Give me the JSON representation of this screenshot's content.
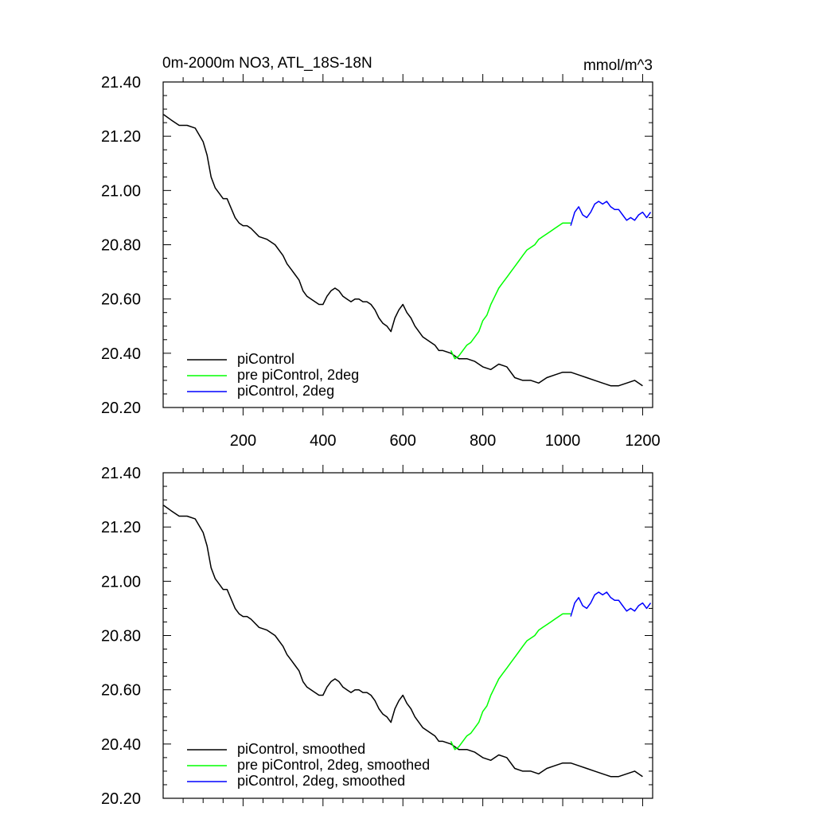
{
  "chart_data": [
    {
      "type": "line",
      "title": "0m-2000m NO3, ATL_18S-18N",
      "units": "mmol/m^3",
      "xlim": [
        0,
        1225
      ],
      "ylim": [
        20.2,
        21.4
      ],
      "xticks": [
        200,
        400,
        600,
        800,
        1000,
        1200
      ],
      "xtick_labels": [
        "200",
        "400",
        "600",
        "800",
        "1000",
        "1200"
      ],
      "yticks": [
        20.2,
        20.4,
        20.6,
        20.8,
        21.0,
        21.2,
        21.4
      ],
      "ytick_labels": [
        "20.20",
        "20.40",
        "20.60",
        "20.80",
        "21.00",
        "21.20",
        "21.40"
      ],
      "legend_position": "bottom-left",
      "series": [
        {
          "name": "piControl",
          "color": "#000000",
          "x": [
            1,
            20,
            40,
            60,
            80,
            100,
            110,
            120,
            130,
            140,
            150,
            160,
            180,
            190,
            200,
            210,
            220,
            240,
            260,
            280,
            300,
            310,
            320,
            330,
            340,
            350,
            360,
            370,
            380,
            390,
            400,
            410,
            420,
            430,
            440,
            450,
            460,
            470,
            480,
            490,
            500,
            510,
            520,
            530,
            540,
            550,
            560,
            570,
            580,
            590,
            600,
            610,
            620,
            630,
            640,
            650,
            660,
            670,
            680,
            690,
            700,
            720,
            740,
            760,
            780,
            800,
            820,
            840,
            860,
            880,
            900,
            920,
            940,
            960,
            980,
            1000,
            1020,
            1040,
            1060,
            1080,
            1100,
            1120,
            1140,
            1160,
            1180,
            1200
          ],
          "y": [
            21.28,
            21.26,
            21.24,
            21.24,
            21.23,
            21.18,
            21.13,
            21.05,
            21.01,
            20.99,
            20.97,
            20.97,
            20.9,
            20.88,
            20.87,
            20.87,
            20.86,
            20.83,
            20.82,
            20.8,
            20.76,
            20.73,
            20.71,
            20.69,
            20.67,
            20.63,
            20.61,
            20.6,
            20.59,
            20.58,
            20.58,
            20.61,
            20.63,
            20.64,
            20.63,
            20.61,
            20.6,
            20.59,
            20.6,
            20.6,
            20.59,
            20.59,
            20.58,
            20.56,
            20.53,
            20.51,
            20.5,
            20.48,
            20.53,
            20.56,
            20.58,
            20.55,
            20.53,
            20.5,
            20.48,
            20.46,
            20.45,
            20.44,
            20.43,
            20.41,
            20.41,
            20.4,
            20.38,
            20.38,
            20.37,
            20.35,
            20.34,
            20.36,
            20.35,
            20.31,
            20.3,
            20.3,
            20.29,
            20.31,
            20.32,
            20.33,
            20.33,
            20.32,
            20.31,
            20.3,
            20.29,
            20.28,
            20.28,
            20.29,
            20.3,
            20.28
          ]
        },
        {
          "name": "pre piControl, 2deg",
          "color": "#00ff00",
          "x": [
            720,
            730,
            740,
            750,
            760,
            770,
            780,
            790,
            800,
            810,
            820,
            830,
            840,
            850,
            860,
            870,
            880,
            890,
            900,
            910,
            920,
            930,
            940,
            950,
            960,
            970,
            980,
            990,
            1000,
            1010,
            1020
          ],
          "y": [
            20.41,
            20.38,
            20.39,
            20.41,
            20.43,
            20.44,
            20.46,
            20.48,
            20.52,
            20.54,
            20.58,
            20.61,
            20.64,
            20.66,
            20.68,
            20.7,
            20.72,
            20.74,
            20.76,
            20.78,
            20.79,
            20.8,
            20.82,
            20.83,
            20.84,
            20.85,
            20.86,
            20.87,
            20.88,
            20.88,
            20.88
          ]
        },
        {
          "name": "piControl, 2deg",
          "color": "#0000ff",
          "x": [
            1020,
            1030,
            1040,
            1050,
            1060,
            1070,
            1080,
            1090,
            1100,
            1110,
            1120,
            1130,
            1140,
            1150,
            1160,
            1170,
            1180,
            1190,
            1200,
            1210,
            1220
          ],
          "y": [
            20.87,
            20.92,
            20.94,
            20.91,
            20.9,
            20.92,
            20.95,
            20.96,
            20.95,
            20.96,
            20.94,
            20.93,
            20.93,
            20.91,
            20.89,
            20.9,
            20.89,
            20.91,
            20.92,
            20.9,
            20.92
          ]
        }
      ]
    },
    {
      "type": "line",
      "title": "",
      "xlim": [
        0,
        1225
      ],
      "ylim": [
        20.2,
        21.4
      ],
      "yticks": [
        20.2,
        20.4,
        20.6,
        20.8,
        21.0,
        21.2,
        21.4
      ],
      "ytick_labels": [
        "20.20",
        "20.40",
        "20.60",
        "20.80",
        "21.00",
        "21.20",
        "21.40"
      ],
      "legend_position": "bottom-left",
      "series": [
        {
          "name": "piControl, smoothed",
          "color": "#000000",
          "x": [
            1,
            20,
            40,
            60,
            80,
            100,
            110,
            120,
            130,
            140,
            150,
            160,
            180,
            190,
            200,
            210,
            220,
            240,
            260,
            280,
            300,
            310,
            320,
            330,
            340,
            350,
            360,
            370,
            380,
            390,
            400,
            410,
            420,
            430,
            440,
            450,
            460,
            470,
            480,
            490,
            500,
            510,
            520,
            530,
            540,
            550,
            560,
            570,
            580,
            590,
            600,
            610,
            620,
            630,
            640,
            650,
            660,
            670,
            680,
            690,
            700,
            720,
            740,
            760,
            780,
            800,
            820,
            840,
            860,
            880,
            900,
            920,
            940,
            960,
            980,
            1000,
            1020,
            1040,
            1060,
            1080,
            1100,
            1120,
            1140,
            1160,
            1180,
            1200
          ],
          "y": [
            21.28,
            21.26,
            21.24,
            21.24,
            21.23,
            21.18,
            21.13,
            21.05,
            21.01,
            20.99,
            20.97,
            20.97,
            20.9,
            20.88,
            20.87,
            20.87,
            20.86,
            20.83,
            20.82,
            20.8,
            20.76,
            20.73,
            20.71,
            20.69,
            20.67,
            20.63,
            20.61,
            20.6,
            20.59,
            20.58,
            20.58,
            20.61,
            20.63,
            20.64,
            20.63,
            20.61,
            20.6,
            20.59,
            20.6,
            20.6,
            20.59,
            20.59,
            20.58,
            20.56,
            20.53,
            20.51,
            20.5,
            20.48,
            20.53,
            20.56,
            20.58,
            20.55,
            20.53,
            20.5,
            20.48,
            20.46,
            20.45,
            20.44,
            20.43,
            20.41,
            20.41,
            20.4,
            20.38,
            20.38,
            20.37,
            20.35,
            20.34,
            20.36,
            20.35,
            20.31,
            20.3,
            20.3,
            20.29,
            20.31,
            20.32,
            20.33,
            20.33,
            20.32,
            20.31,
            20.3,
            20.29,
            20.28,
            20.28,
            20.29,
            20.3,
            20.28
          ]
        },
        {
          "name": "pre piControl, 2deg, smoothed",
          "color": "#00ff00",
          "x": [
            720,
            730,
            740,
            750,
            760,
            770,
            780,
            790,
            800,
            810,
            820,
            830,
            840,
            850,
            860,
            870,
            880,
            890,
            900,
            910,
            920,
            930,
            940,
            950,
            960,
            970,
            980,
            990,
            1000,
            1010,
            1020
          ],
          "y": [
            20.41,
            20.38,
            20.39,
            20.41,
            20.43,
            20.44,
            20.46,
            20.48,
            20.52,
            20.54,
            20.58,
            20.61,
            20.64,
            20.66,
            20.68,
            20.7,
            20.72,
            20.74,
            20.76,
            20.78,
            20.79,
            20.8,
            20.82,
            20.83,
            20.84,
            20.85,
            20.86,
            20.87,
            20.88,
            20.88,
            20.88
          ]
        },
        {
          "name": "piControl, 2deg, smoothed",
          "color": "#0000ff",
          "x": [
            1020,
            1030,
            1040,
            1050,
            1060,
            1070,
            1080,
            1090,
            1100,
            1110,
            1120,
            1130,
            1140,
            1150,
            1160,
            1170,
            1180,
            1190,
            1200,
            1210,
            1220
          ],
          "y": [
            20.87,
            20.92,
            20.94,
            20.91,
            20.9,
            20.92,
            20.95,
            20.96,
            20.95,
            20.96,
            20.94,
            20.93,
            20.93,
            20.91,
            20.89,
            20.9,
            20.89,
            20.91,
            20.92,
            20.9,
            20.92
          ]
        }
      ]
    }
  ]
}
